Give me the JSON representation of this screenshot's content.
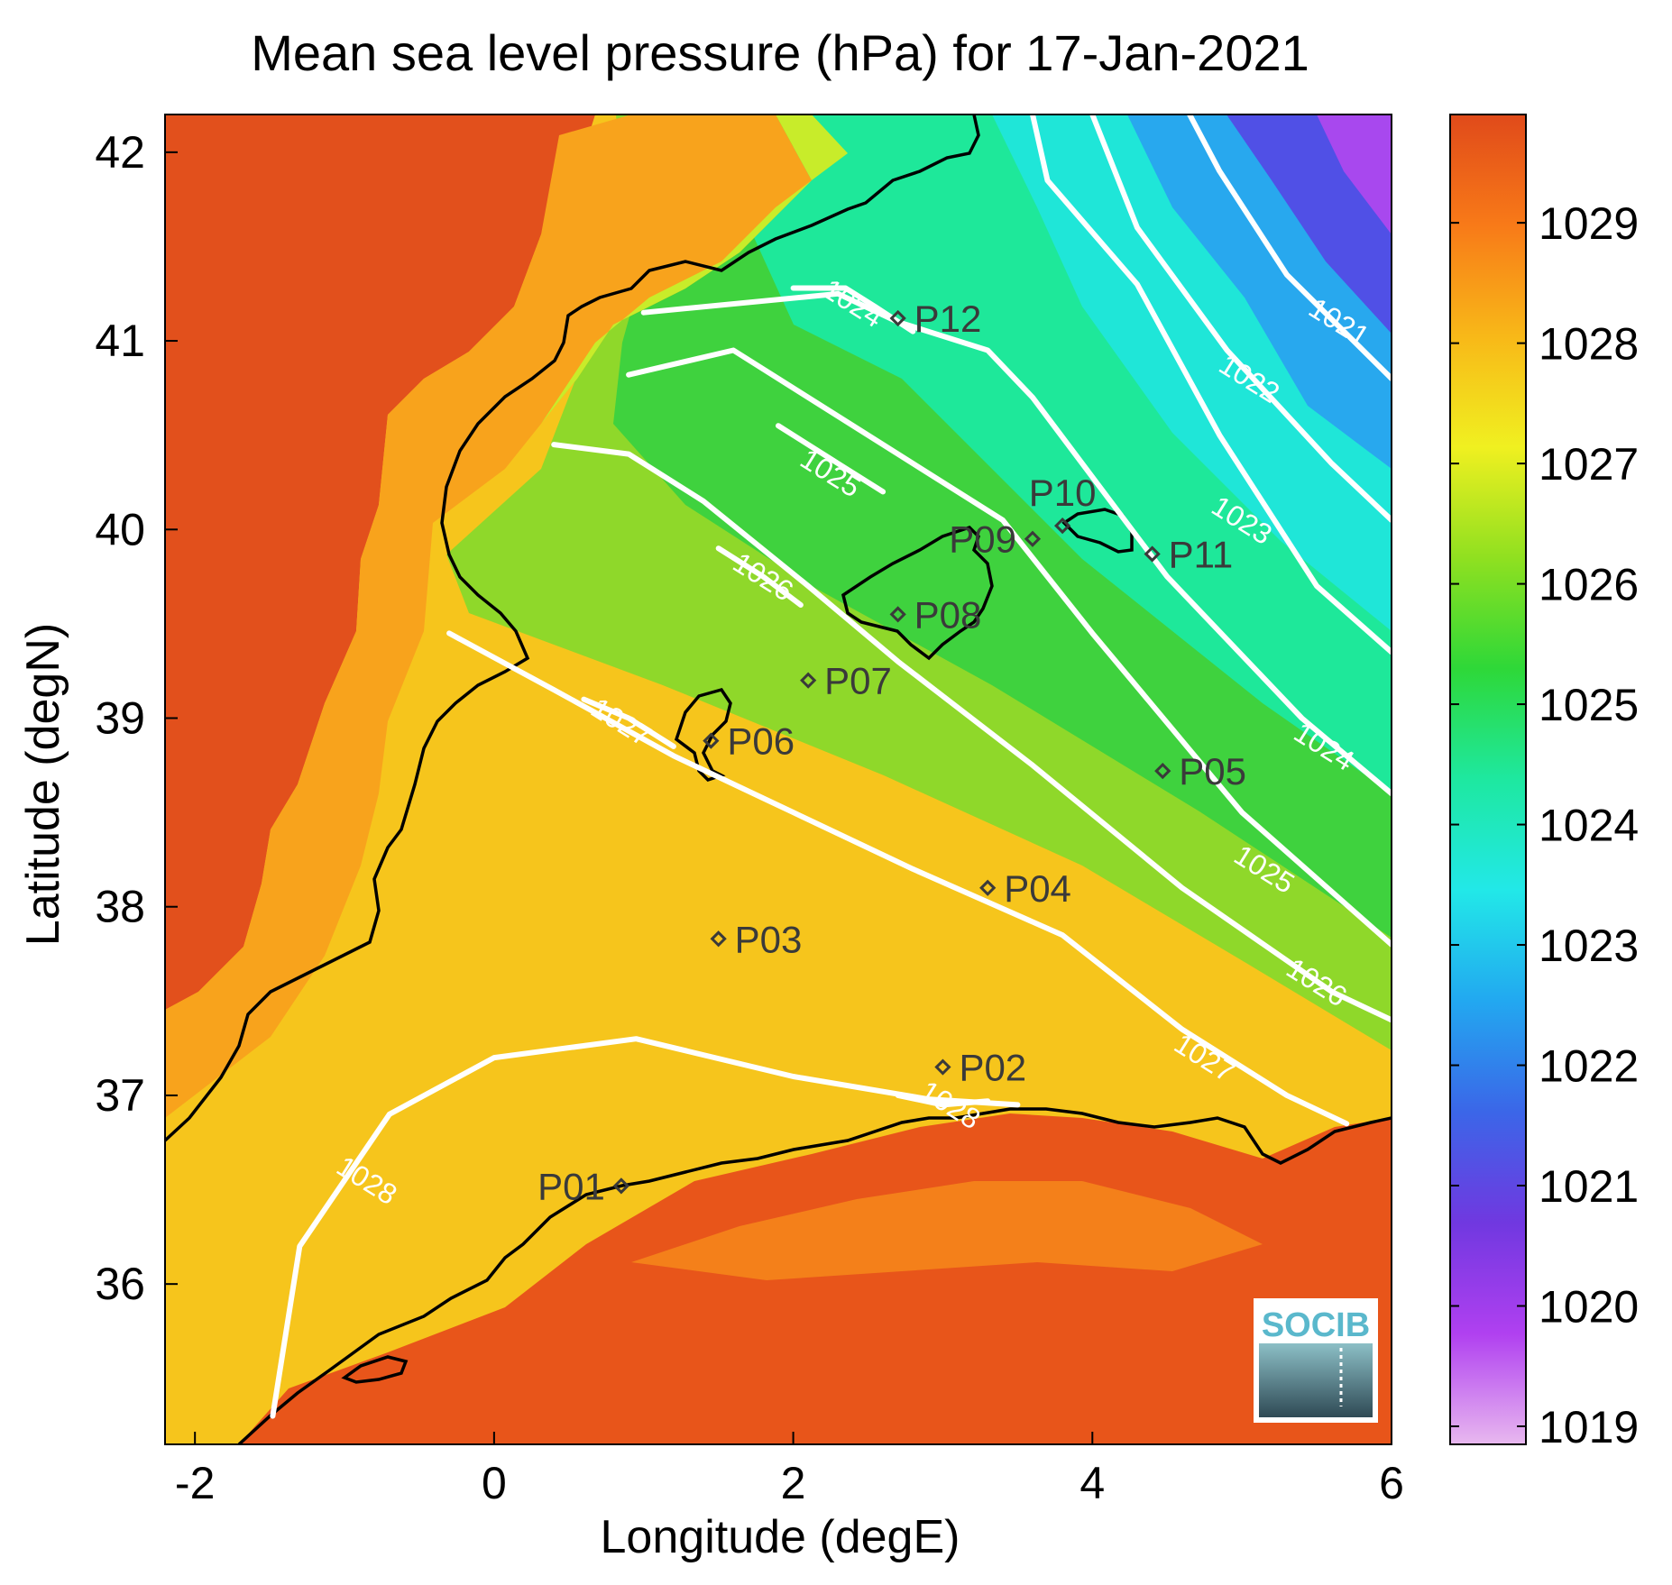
{
  "title": "Mean sea level pressure (hPa) for 17-Jan-2021",
  "x_axis": {
    "label": "Longitude (degE)",
    "range": [
      -2.2,
      6
    ],
    "ticks": [
      {
        "value": -2,
        "label": "-2"
      },
      {
        "value": 0,
        "label": "0"
      },
      {
        "value": 2,
        "label": "2"
      },
      {
        "value": 4,
        "label": "4"
      },
      {
        "value": 6,
        "label": "6"
      }
    ]
  },
  "y_axis": {
    "label": "Latitude (degN)",
    "range": [
      35.15,
      42.2
    ],
    "ticks": [
      {
        "value": 36,
        "label": "36"
      },
      {
        "value": 37,
        "label": "37"
      },
      {
        "value": 38,
        "label": "38"
      },
      {
        "value": 39,
        "label": "39"
      },
      {
        "value": 40,
        "label": "40"
      },
      {
        "value": 41,
        "label": "41"
      },
      {
        "value": 42,
        "label": "42"
      }
    ]
  },
  "colorbar": {
    "range": [
      1018.85,
      1029.9
    ],
    "ticks": [
      {
        "value": 1019,
        "label": "1019"
      },
      {
        "value": 1020,
        "label": "1020"
      },
      {
        "value": 1021,
        "label": "1021"
      },
      {
        "value": 1022,
        "label": "1022"
      },
      {
        "value": 1023,
        "label": "1023"
      },
      {
        "value": 1024,
        "label": "1024"
      },
      {
        "value": 1025,
        "label": "1025"
      },
      {
        "value": 1026,
        "label": "1026"
      },
      {
        "value": 1027,
        "label": "1027"
      },
      {
        "value": 1028,
        "label": "1028"
      },
      {
        "value": 1029,
        "label": "1029"
      }
    ],
    "colors": [
      "#e8b8ef",
      "#b040f0",
      "#7038e0",
      "#3b66e8",
      "#22a8f0",
      "#22e8e8",
      "#1ee8a0",
      "#2ed838",
      "#90e020",
      "#f0f020",
      "#f8b818",
      "#f87a18",
      "#e04a1a"
    ]
  },
  "stations": [
    {
      "name": "P01",
      "lon": 0.85,
      "lat": 36.52,
      "label_side": "left"
    },
    {
      "name": "P02",
      "lon": 3.0,
      "lat": 37.15,
      "label_side": "right"
    },
    {
      "name": "P03",
      "lon": 1.5,
      "lat": 37.83,
      "label_side": "right"
    },
    {
      "name": "P04",
      "lon": 3.3,
      "lat": 38.1,
      "label_side": "right"
    },
    {
      "name": "P05",
      "lon": 4.47,
      "lat": 38.72,
      "label_side": "right"
    },
    {
      "name": "P06",
      "lon": 1.45,
      "lat": 38.88,
      "label_side": "right"
    },
    {
      "name": "P07",
      "lon": 2.1,
      "lat": 39.2,
      "label_side": "right"
    },
    {
      "name": "P08",
      "lon": 2.7,
      "lat": 39.55,
      "label_side": "right"
    },
    {
      "name": "P09",
      "lon": 3.6,
      "lat": 39.95,
      "label_side": "left"
    },
    {
      "name": "P10",
      "lon": 3.8,
      "lat": 40.02,
      "label_side": "above"
    },
    {
      "name": "P11",
      "lon": 4.4,
      "lat": 39.87,
      "label_side": "right"
    },
    {
      "name": "P12",
      "lon": 2.7,
      "lat": 41.12,
      "label_side": "right"
    }
  ],
  "contours": [
    {
      "level": 1021,
      "label": "1021",
      "points": [
        [
          4.65,
          42.2
        ],
        [
          4.85,
          41.9
        ],
        [
          5.3,
          41.35
        ],
        [
          6.0,
          40.8
        ]
      ],
      "label_at": [
        5.65,
        41.1
      ]
    },
    {
      "level": 1022,
      "label": "1022",
      "points": [
        [
          4.0,
          42.2
        ],
        [
          4.3,
          41.6
        ],
        [
          4.9,
          40.95
        ],
        [
          5.6,
          40.35
        ],
        [
          6.0,
          40.05
        ]
      ],
      "label_at": [
        5.05,
        40.8
      ]
    },
    {
      "level": 1023,
      "label": "1023",
      "points": [
        [
          3.6,
          42.2
        ],
        [
          3.7,
          41.85
        ],
        [
          4.3,
          41.3
        ],
        [
          4.85,
          40.5
        ],
        [
          5.5,
          39.7
        ],
        [
          6.0,
          39.35
        ]
      ],
      "label_at": [
        5.0,
        40.05
      ]
    },
    {
      "level": 1024,
      "label": "1024",
      "points": [
        [
          1.0,
          41.15
        ],
        [
          2.3,
          41.25
        ],
        [
          2.7,
          41.1
        ],
        [
          3.3,
          40.95
        ],
        [
          3.6,
          40.7
        ],
        [
          4.5,
          39.75
        ],
        [
          5.4,
          39.0
        ],
        [
          6.0,
          38.6
        ]
      ],
      "label_at": [
        5.55,
        38.85
      ]
    },
    {
      "level": 1024,
      "label": "1024",
      "points": [
        [
          2.0,
          41.28
        ],
        [
          2.35,
          41.28
        ],
        [
          2.55,
          41.18
        ],
        [
          2.8,
          41.05
        ]
      ],
      "label_at": [
        2.4,
        41.2
      ]
    },
    {
      "level": 1025,
      "label": "1025",
      "points": [
        [
          0.9,
          40.82
        ],
        [
          1.6,
          40.95
        ],
        [
          2.4,
          40.55
        ],
        [
          3.4,
          40.05
        ],
        [
          4.0,
          39.45
        ],
        [
          5.0,
          38.5
        ],
        [
          6.0,
          37.8
        ]
      ],
      "label_at": [
        5.15,
        38.2
      ]
    },
    {
      "level": 1025,
      "label": "1025",
      "points": [
        [
          1.9,
          40.55
        ],
        [
          2.3,
          40.35
        ],
        [
          2.6,
          40.2
        ]
      ],
      "label_at": [
        2.25,
        40.3
      ]
    },
    {
      "level": 1026,
      "label": "1026",
      "points": [
        [
          0.4,
          40.45
        ],
        [
          0.9,
          40.4
        ],
        [
          1.4,
          40.15
        ],
        [
          2.1,
          39.7
        ],
        [
          2.7,
          39.3
        ],
        [
          3.6,
          38.75
        ],
        [
          4.6,
          38.1
        ],
        [
          5.6,
          37.55
        ],
        [
          6.0,
          37.4
        ]
      ],
      "label_at": [
        5.5,
        37.6
      ]
    },
    {
      "level": 1026,
      "label": "1026",
      "points": [
        [
          1.5,
          39.9
        ],
        [
          1.8,
          39.75
        ],
        [
          2.05,
          39.6
        ]
      ],
      "label_at": [
        1.8,
        39.75
      ]
    },
    {
      "level": 1027,
      "label": "1027",
      "points": [
        [
          -0.3,
          39.45
        ],
        [
          0.4,
          39.15
        ],
        [
          1.2,
          38.8
        ],
        [
          2.0,
          38.5
        ],
        [
          2.8,
          38.2
        ],
        [
          3.8,
          37.85
        ],
        [
          4.6,
          37.35
        ],
        [
          5.3,
          37.0
        ],
        [
          5.7,
          36.85
        ]
      ],
      "label_at": [
        4.75,
        37.2
      ]
    },
    {
      "level": 1027,
      "label": "1027",
      "points": [
        [
          0.6,
          39.1
        ],
        [
          0.9,
          39.0
        ],
        [
          1.2,
          38.85
        ]
      ],
      "label_at": [
        0.85,
        38.98
      ]
    },
    {
      "level": 1028,
      "label": "1028",
      "points": [
        [
          -1.48,
          35.3
        ],
        [
          -1.3,
          36.2
        ],
        [
          -0.7,
          36.9
        ],
        [
          0.0,
          37.2
        ],
        [
          0.95,
          37.3
        ],
        [
          2.0,
          37.1
        ],
        [
          2.9,
          36.98
        ],
        [
          3.5,
          36.95
        ]
      ],
      "label_at": [
        -0.85,
        36.55
      ]
    },
    {
      "level": 1028,
      "label": "1028",
      "points": [
        [
          2.7,
          37.0
        ],
        [
          3.0,
          36.95
        ],
        [
          3.3,
          36.97
        ]
      ],
      "label_at": [
        3.05,
        36.95
      ]
    }
  ],
  "logo": {
    "text": "SOCIB"
  }
}
